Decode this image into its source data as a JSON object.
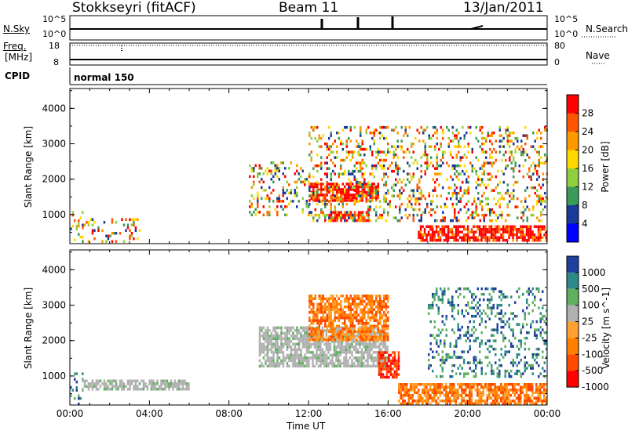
{
  "header": {
    "station": "Stokkseyri (fitACF)",
    "beam": "Beam 11",
    "date": "13/Jan/2011"
  },
  "noise_panel": {
    "left_label": "N.Sky",
    "left_ticks": [
      "10^5",
      "10^0"
    ],
    "right_ticks": [
      "10^5",
      "10^0"
    ],
    "right_label": "N.Search"
  },
  "freq_panel": {
    "left_label_1": "Freq.",
    "left_label_2": "[MHz]",
    "left_ticks": [
      "18",
      "8"
    ],
    "right_ticks": [
      "80",
      "0"
    ],
    "right_label": "Nave"
  },
  "cpid_panel": {
    "label": "CPID",
    "mode": "normal 150"
  },
  "chart_data": [
    {
      "type": "heatmap",
      "panel": "power",
      "ylabel": "Slant Range [km]",
      "yticks": [
        1000,
        2000,
        3000,
        4000
      ],
      "ylim": [
        180,
        4560
      ],
      "xlim_hours": [
        0,
        24
      ],
      "colorbar_label": "Power [dB]",
      "colorbar_ticks": [
        28,
        24,
        20,
        16,
        12,
        8,
        4
      ],
      "colorbar_colors": [
        "#ff0000",
        "#ff5500",
        "#ff9900",
        "#ffd800",
        "#90d040",
        "#3a9a5a",
        "#1a3a9a",
        "#0000ff"
      ],
      "regions": [
        {
          "t": [
            0.0,
            0.6
          ],
          "r": [
            200,
            1100
          ],
          "level": "mixed"
        },
        {
          "t": [
            0.6,
            3.5
          ],
          "r": [
            250,
            900
          ],
          "level": "mixed"
        },
        {
          "t": [
            12.0,
            15.5
          ],
          "r": [
            1400,
            1900
          ],
          "level": "high"
        },
        {
          "t": [
            13.0,
            15.0
          ],
          "r": [
            800,
            1100
          ],
          "level": "high"
        },
        {
          "t": [
            17.5,
            24.0
          ],
          "r": [
            250,
            700
          ],
          "level": "high"
        },
        {
          "t": [
            9.0,
            12.0
          ],
          "r": [
            1000,
            2500
          ],
          "level": "mixed"
        },
        {
          "t": [
            12.0,
            24.0
          ],
          "r": [
            800,
            3500
          ],
          "level": "mixed"
        }
      ]
    },
    {
      "type": "heatmap",
      "panel": "velocity",
      "ylabel": "Slant Range [km]",
      "yticks": [
        1000,
        2000,
        3000,
        4000
      ],
      "ylim": [
        180,
        4560
      ],
      "xlim_hours": [
        0,
        24
      ],
      "colorbar_label": "Velocity [m s^-1]",
      "colorbar_ticks": [
        1000,
        500,
        100,
        25,
        -25,
        -100,
        -500,
        -1000
      ],
      "colorbar_colors": [
        "#2040a0",
        "#2c8a8a",
        "#60b060",
        "#b0b0b0",
        "#ffa030",
        "#ff8000",
        "#ff4a00",
        "#ff0000"
      ],
      "regions": [
        {
          "t": [
            0.0,
            0.6
          ],
          "r": [
            200,
            1100
          ],
          "level": "green"
        },
        {
          "t": [
            0.6,
            6.0
          ],
          "r": [
            600,
            900
          ],
          "level": "grey"
        },
        {
          "t": [
            9.5,
            16.0
          ],
          "r": [
            1300,
            2400
          ],
          "level": "grey"
        },
        {
          "t": [
            12.0,
            16.0
          ],
          "r": [
            2000,
            3300
          ],
          "level": "orange"
        },
        {
          "t": [
            15.5,
            16.5
          ],
          "r": [
            1000,
            1700
          ],
          "level": "red"
        },
        {
          "t": [
            16.5,
            24.0
          ],
          "r": [
            250,
            800
          ],
          "level": "orange"
        },
        {
          "t": [
            18.0,
            24.0
          ],
          "r": [
            1000,
            3500
          ],
          "level": "green"
        }
      ]
    }
  ],
  "x_axis": {
    "ticks": [
      "00:00",
      "04:00",
      "08:00",
      "12:00",
      "16:00",
      "20:00",
      "00:00"
    ],
    "label": "Time UT"
  }
}
